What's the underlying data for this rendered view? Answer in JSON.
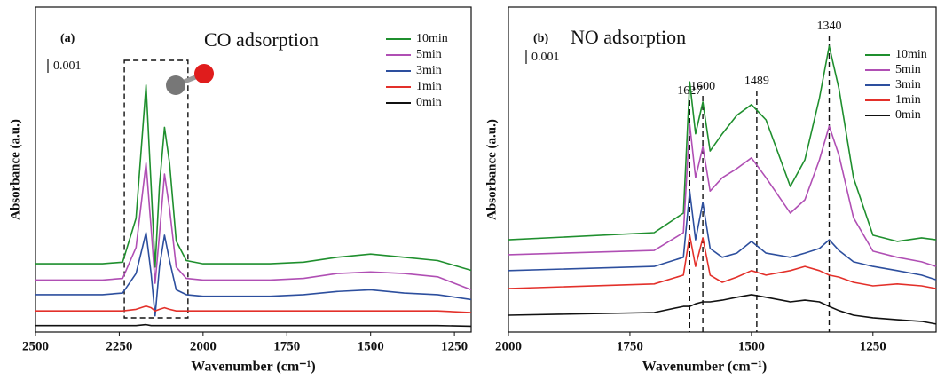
{
  "chart_data": [
    {
      "type": "line",
      "panel_label": "(a)",
      "title": "CO adsorption",
      "scale_label": "0.001",
      "xlabel": "Wavenumber (cm⁻¹)",
      "ylabel": "Absorbance (a.u.)",
      "xlim": [
        2500,
        1200
      ],
      "xticks": [
        2500,
        2250,
        2000,
        1750,
        1500,
        1250
      ],
      "ylim": [
        0,
        100
      ],
      "highlight_box": [
        2235,
        2045
      ],
      "x": [
        2500,
        2400,
        2300,
        2240,
        2200,
        2170,
        2155,
        2143,
        2130,
        2115,
        2100,
        2080,
        2050,
        2000,
        1900,
        1800,
        1700,
        1600,
        1500,
        1400,
        1300,
        1200
      ],
      "series": [
        {
          "name": "10min",
          "color": "#1f8f2e",
          "values": [
            21,
            21,
            21,
            21.5,
            35,
            76,
            45,
            20,
            45,
            63,
            52,
            28,
            22,
            21,
            21,
            21,
            21.5,
            23,
            24,
            23,
            22,
            19
          ]
        },
        {
          "name": "5min",
          "color": "#b04fb4",
          "values": [
            16,
            16,
            16,
            16.5,
            26,
            52,
            32,
            15,
            30,
            48.6,
            38,
            20,
            16.5,
            16,
            16,
            16,
            16.5,
            18,
            18.5,
            18,
            17,
            13
          ]
        },
        {
          "name": "3min",
          "color": "#2d4f9e",
          "values": [
            11.5,
            11.5,
            11.5,
            12,
            18,
            30.6,
            18,
            5,
            20,
            29.8,
            22,
            13,
            11.5,
            11,
            11,
            11,
            11.5,
            12.5,
            13,
            12,
            11.5,
            10
          ]
        },
        {
          "name": "1min",
          "color": "#e3302a",
          "values": [
            6.5,
            6.5,
            6.5,
            6.5,
            7,
            8,
            7.5,
            6.5,
            7,
            7.5,
            7,
            6.5,
            6.5,
            6.5,
            6.5,
            6.5,
            6.5,
            6.5,
            6.5,
            6.5,
            6.5,
            6
          ]
        },
        {
          "name": "0min",
          "color": "#111111",
          "values": [
            2,
            2,
            2,
            2,
            2,
            2.3,
            2,
            2,
            2,
            2,
            2,
            2,
            2,
            2,
            2,
            2,
            2,
            2,
            2,
            2,
            2,
            1.8
          ]
        }
      ]
    },
    {
      "type": "line",
      "panel_label": "(b)",
      "title": "NO adsorption",
      "scale_label": "0.001",
      "xlabel": "Wavenumber (cm⁻¹)",
      "ylabel": "Absorbance (a.u.)",
      "xlim": [
        2000,
        1120
      ],
      "xticks": [
        2000,
        1750,
        1500,
        1250
      ],
      "ylim": [
        0,
        100
      ],
      "peak_lines": [
        1627,
        1600,
        1489,
        1340
      ],
      "x": [
        2000,
        1700,
        1640,
        1627,
        1615,
        1600,
        1585,
        1560,
        1530,
        1500,
        1470,
        1420,
        1390,
        1360,
        1340,
        1320,
        1290,
        1250,
        1200,
        1150,
        1120
      ],
      "series": [
        {
          "name": "10min",
          "color": "#1f8f2e",
          "values": [
            28.4,
            30.6,
            36.6,
            77,
            61,
            70.8,
            55.7,
            61,
            66.7,
            70,
            65.3,
            44.8,
            53,
            72,
            88,
            74.9,
            47.5,
            29.8,
            27.9,
            29,
            28.4
          ]
        },
        {
          "name": "5min",
          "color": "#b04fb4",
          "values": [
            23.8,
            25.1,
            30.6,
            64,
            47.5,
            57,
            43.4,
            47.5,
            50.3,
            53.6,
            47.5,
            36.6,
            40.7,
            53,
            63.4,
            54.4,
            35.2,
            24.9,
            23,
            21.6,
            20.2
          ]
        },
        {
          "name": "3min",
          "color": "#2d4f9e",
          "values": [
            18.9,
            20.2,
            23,
            43.4,
            28.4,
            39.9,
            25.7,
            23,
            24.3,
            27.9,
            24.3,
            23,
            24.3,
            25.7,
            28.4,
            25.1,
            21.6,
            20.2,
            18.9,
            17.5,
            16.1
          ]
        },
        {
          "name": "1min",
          "color": "#e3302a",
          "values": [
            13.4,
            14.8,
            17.5,
            29.8,
            20.2,
            29,
            17.5,
            15.3,
            16.9,
            18.9,
            17.5,
            18.9,
            20.2,
            18.9,
            17.5,
            16.9,
            15.3,
            14.2,
            14.8,
            14.2,
            13.4
          ]
        },
        {
          "name": "0min",
          "color": "#111111",
          "values": [
            5.2,
            6,
            7.9,
            7.9,
            8.7,
            9.3,
            9.3,
            9.8,
            10.7,
            11.5,
            10.7,
            9.3,
            9.8,
            9.3,
            7.9,
            6.6,
            5.2,
            4.4,
            3.8,
            3.3,
            2.5
          ]
        }
      ]
    }
  ]
}
